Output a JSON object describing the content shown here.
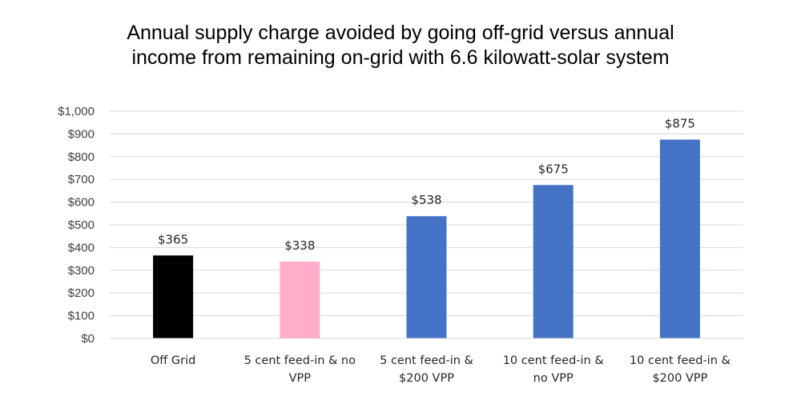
{
  "chart_data": {
    "type": "bar",
    "title_lines": [
      "Annual supply charge avoided by going off-grid versus annual",
      "income from remaining on-grid with 6.6 kilowatt-solar system"
    ],
    "categories": [
      [
        "Off Grid"
      ],
      [
        "5 cent feed-in & no",
        "VPP"
      ],
      [
        "5 cent feed-in &",
        "$200 VPP"
      ],
      [
        "10 cent feed-in &",
        "no VPP"
      ],
      [
        "10 cent feed-in &",
        "$200 VPP"
      ]
    ],
    "values": [
      365,
      338,
      538,
      675,
      875
    ],
    "value_labels": [
      "$365",
      "$338",
      "$538",
      "$675",
      "$875"
    ],
    "bar_colors": [
      "#000000",
      "#ffadcb",
      "#4472c4",
      "#4472c4",
      "#4472c4"
    ],
    "y_ticks": [
      0,
      100,
      200,
      300,
      400,
      500,
      600,
      700,
      800,
      900,
      1000
    ],
    "y_tick_labels": [
      "$0",
      "$100",
      "$200",
      "$300",
      "$400",
      "$500",
      "$600",
      "$700",
      "$800",
      "$900",
      "$1,000"
    ],
    "ylim": [
      0,
      1000
    ],
    "grid": true,
    "legend": "none",
    "gridline_color": "#d9d9d9",
    "axis_color": "#d9d9d9"
  }
}
